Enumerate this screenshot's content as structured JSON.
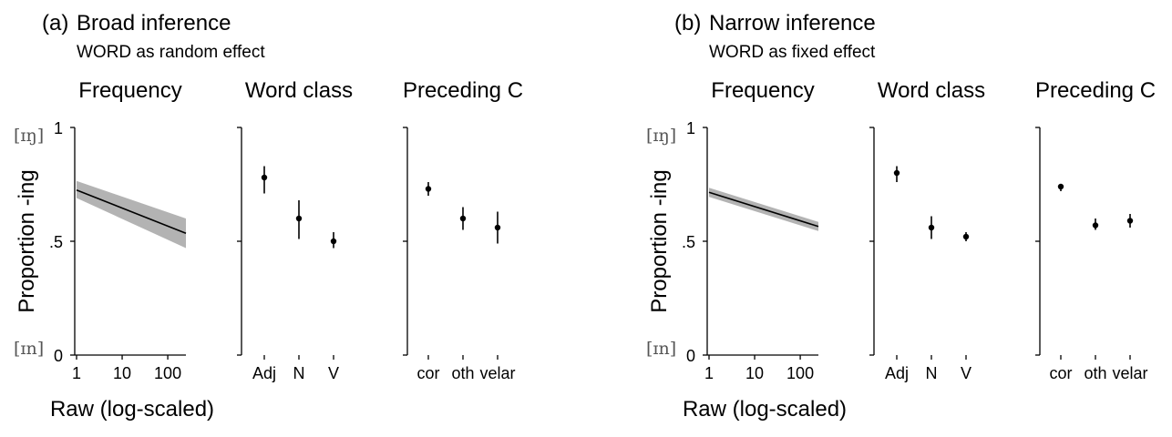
{
  "chart_data": [
    {
      "label": "(a)",
      "title": "Broad inference",
      "subtitle": "WORD as random effect",
      "ylabel": "Proportion -ing",
      "ylim": [
        0,
        1
      ],
      "yticks": [
        "0",
        ".5",
        "1"
      ],
      "ytick_values": [
        0,
        0.5,
        1
      ],
      "y_extremes": {
        "top": "[ɪŋ]",
        "bottom": "[ɪn]"
      },
      "panels": [
        {
          "title": "Frequency",
          "type": "line",
          "xlabel": "Raw (log-scaled)",
          "xscale": "log",
          "xticks": [
            "1",
            "10",
            "100"
          ],
          "xtick_values": [
            1,
            10,
            100
          ],
          "xlim": [
            1,
            250
          ],
          "line": {
            "x": [
              1,
              250
            ],
            "y": [
              0.725,
              0.535
            ]
          },
          "ribbon": {
            "x": [
              1,
              250
            ],
            "lower": [
              0.69,
              0.47
            ],
            "upper": [
              0.765,
              0.6
            ]
          },
          "colors": {
            "line": "#000000",
            "ribbon": "#b3b3b3"
          }
        },
        {
          "title": "Word class",
          "type": "pointrange",
          "categories": [
            "Adj",
            "N",
            "V"
          ],
          "values": [
            0.78,
            0.6,
            0.5
          ],
          "lower": [
            0.71,
            0.51,
            0.47
          ],
          "upper": [
            0.83,
            0.68,
            0.54
          ]
        },
        {
          "title": "Preceding C",
          "type": "pointrange",
          "categories": [
            "cor",
            "oth",
            "velar"
          ],
          "values": [
            0.73,
            0.6,
            0.56
          ],
          "lower": [
            0.7,
            0.55,
            0.49
          ],
          "upper": [
            0.76,
            0.65,
            0.63
          ]
        }
      ]
    },
    {
      "label": "(b)",
      "title": "Narrow inference",
      "subtitle": "WORD as fixed effect",
      "ylabel": "Proportion -ing",
      "ylim": [
        0,
        1
      ],
      "yticks": [
        "0",
        ".5",
        "1"
      ],
      "ytick_values": [
        0,
        0.5,
        1
      ],
      "y_extremes": {
        "top": "[ɪŋ]",
        "bottom": "[ɪn]"
      },
      "panels": [
        {
          "title": "Frequency",
          "type": "line",
          "xlabel": "Raw (log-scaled)",
          "xscale": "log",
          "xticks": [
            "1",
            "10",
            "100"
          ],
          "xtick_values": [
            1,
            10,
            100
          ],
          "xlim": [
            1,
            250
          ],
          "line": {
            "x": [
              1,
              250
            ],
            "y": [
              0.715,
              0.565
            ]
          },
          "ribbon": {
            "x": [
              1,
              250
            ],
            "lower": [
              0.695,
              0.545
            ],
            "upper": [
              0.735,
              0.585
            ]
          },
          "colors": {
            "line": "#000000",
            "ribbon": "#b3b3b3"
          }
        },
        {
          "title": "Word class",
          "type": "pointrange",
          "categories": [
            "Adj",
            "N",
            "V"
          ],
          "values": [
            0.8,
            0.56,
            0.52
          ],
          "lower": [
            0.76,
            0.51,
            0.5
          ],
          "upper": [
            0.83,
            0.61,
            0.54
          ]
        },
        {
          "title": "Preceding C",
          "type": "pointrange",
          "categories": [
            "cor",
            "oth",
            "velar"
          ],
          "values": [
            0.74,
            0.57,
            0.59
          ],
          "lower": [
            0.72,
            0.55,
            0.56
          ],
          "upper": [
            0.75,
            0.6,
            0.62
          ]
        }
      ]
    }
  ]
}
